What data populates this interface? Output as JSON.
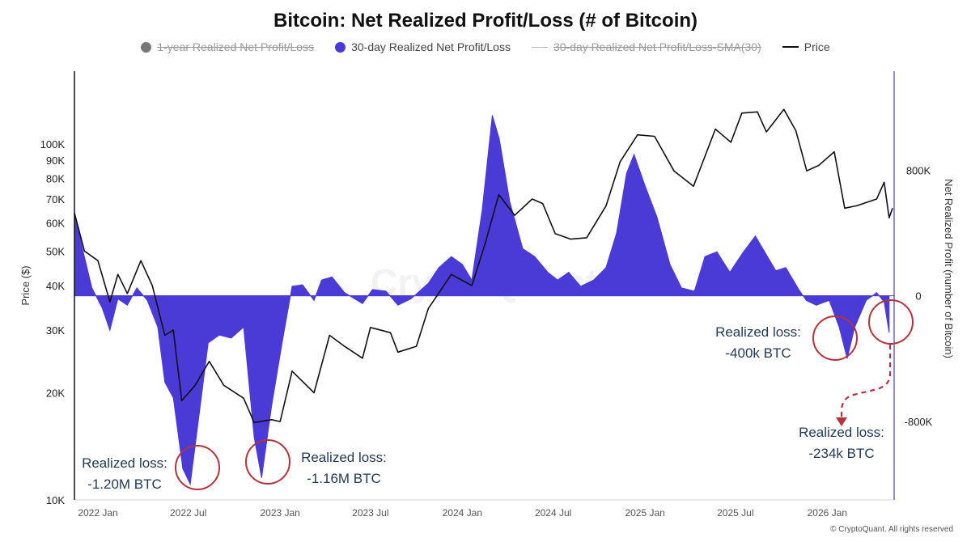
{
  "title": "Bitcoin: Net Realized Profit/Loss (# of Bitcoin)",
  "legend": [
    {
      "label": "1-year Realized Net Profit/Loss",
      "color": "#777777",
      "hidden": true,
      "icon": "dot"
    },
    {
      "label": "30-day Realized Net Profit/Loss",
      "color": "#4a3ad6",
      "hidden": false,
      "icon": "dot"
    },
    {
      "label": "30-day Realized Net Profit/Loss-SMA(30)",
      "color": "#bbbbbb",
      "hidden": true,
      "icon": "line"
    },
    {
      "label": "Price",
      "color": "#111111",
      "hidden": false,
      "icon": "line"
    }
  ],
  "footer": "© CryptoQuant. All rights reserved",
  "watermark": "CryptoQuant",
  "colors": {
    "area": "#4a3ad6",
    "price": "#111111",
    "circle": "#b5333a",
    "annotation_text": "#233a57",
    "right_axis": "#4a3ad6"
  },
  "chart_data": {
    "type": "area",
    "title": "Bitcoin: Net Realized Profit/Loss (# of Bitcoin)",
    "xlabel": "",
    "y_left_label": "Price ($)",
    "y_right_label": "Net Realized Profit (number of Bitcoin)",
    "y_left_scale": "log",
    "y_left_range": [
      10000,
      160000
    ],
    "y_right_range": [
      -1300000,
      1430000
    ],
    "x_range": [
      "2021-11-15",
      "2026-05-15"
    ],
    "x_ticks": [
      {
        "date": "2022-01-01",
        "label": "2022 Jan"
      },
      {
        "date": "2022-07-01",
        "label": "2022 Jul"
      },
      {
        "date": "2023-01-01",
        "label": "2023 Jan"
      },
      {
        "date": "2023-07-01",
        "label": "2023 Jul"
      },
      {
        "date": "2024-01-01",
        "label": "2024 Jan"
      },
      {
        "date": "2024-07-01",
        "label": "2024 Jul"
      },
      {
        "date": "2025-01-01",
        "label": "2025 Jan"
      },
      {
        "date": "2025-07-01",
        "label": "2025 Jul"
      },
      {
        "date": "2026-01-01",
        "label": "2026 Jan"
      }
    ],
    "y_left_ticks": [
      {
        "value": 10000,
        "label": "10K"
      },
      {
        "value": 20000,
        "label": "20K"
      },
      {
        "value": 30000,
        "label": "30K"
      },
      {
        "value": 40000,
        "label": "40K"
      },
      {
        "value": 50000,
        "label": "50K"
      },
      {
        "value": 60000,
        "label": "60K"
      },
      {
        "value": 70000,
        "label": "70K"
      },
      {
        "value": 80000,
        "label": "80K"
      },
      {
        "value": 90000,
        "label": "90K"
      },
      {
        "value": 100000,
        "label": "100K"
      }
    ],
    "y_right_ticks": [
      {
        "value": 800000,
        "label": "800K"
      },
      {
        "value": 0,
        "label": "0"
      },
      {
        "value": -800000,
        "label": "-800K"
      }
    ],
    "grid": false,
    "legend_position": "top-center",
    "series": [
      {
        "name": "30-day Realized Net Profit/Loss",
        "type": "area",
        "axis": "right",
        "points": [
          [
            "2021-11-15",
            530000
          ],
          [
            "2021-12-01",
            300000
          ],
          [
            "2021-12-20",
            50000
          ],
          [
            "2022-01-10",
            -80000
          ],
          [
            "2022-01-25",
            -220000
          ],
          [
            "2022-02-10",
            -20000
          ],
          [
            "2022-03-01",
            -60000
          ],
          [
            "2022-03-20",
            50000
          ],
          [
            "2022-04-10",
            -30000
          ],
          [
            "2022-05-01",
            -200000
          ],
          [
            "2022-05-15",
            -550000
          ],
          [
            "2022-06-01",
            -650000
          ],
          [
            "2022-06-20",
            -1100000
          ],
          [
            "2022-07-05",
            -1200000
          ],
          [
            "2022-07-25",
            -700000
          ],
          [
            "2022-08-10",
            -300000
          ],
          [
            "2022-09-01",
            -250000
          ],
          [
            "2022-09-25",
            -270000
          ],
          [
            "2022-10-20",
            -200000
          ],
          [
            "2022-11-10",
            -900000
          ],
          [
            "2022-11-25",
            -1160000
          ],
          [
            "2022-12-15",
            -700000
          ],
          [
            "2023-01-05",
            -300000
          ],
          [
            "2023-01-25",
            60000
          ],
          [
            "2023-02-15",
            70000
          ],
          [
            "2023-03-10",
            -30000
          ],
          [
            "2023-03-25",
            100000
          ],
          [
            "2023-04-15",
            120000
          ],
          [
            "2023-05-10",
            20000
          ],
          [
            "2023-06-15",
            -50000
          ],
          [
            "2023-07-05",
            40000
          ],
          [
            "2023-08-01",
            30000
          ],
          [
            "2023-08-25",
            -60000
          ],
          [
            "2023-09-20",
            -20000
          ],
          [
            "2023-10-25",
            80000
          ],
          [
            "2023-11-15",
            180000
          ],
          [
            "2023-12-10",
            250000
          ],
          [
            "2024-01-01",
            200000
          ],
          [
            "2024-01-20",
            100000
          ],
          [
            "2024-02-10",
            550000
          ],
          [
            "2024-03-01",
            1150000
          ],
          [
            "2024-03-15",
            1000000
          ],
          [
            "2024-04-05",
            600000
          ],
          [
            "2024-05-01",
            300000
          ],
          [
            "2024-05-25",
            250000
          ],
          [
            "2024-06-20",
            150000
          ],
          [
            "2024-07-10",
            100000
          ],
          [
            "2024-08-01",
            150000
          ],
          [
            "2024-08-25",
            60000
          ],
          [
            "2024-09-20",
            100000
          ],
          [
            "2024-10-15",
            180000
          ],
          [
            "2024-11-05",
            400000
          ],
          [
            "2024-11-25",
            780000
          ],
          [
            "2024-12-10",
            900000
          ],
          [
            "2025-01-01",
            700000
          ],
          [
            "2025-01-25",
            500000
          ],
          [
            "2025-02-20",
            200000
          ],
          [
            "2025-03-15",
            50000
          ],
          [
            "2025-04-10",
            30000
          ],
          [
            "2025-05-01",
            250000
          ],
          [
            "2025-05-25",
            280000
          ],
          [
            "2025-06-20",
            150000
          ],
          [
            "2025-07-15",
            270000
          ],
          [
            "2025-08-10",
            380000
          ],
          [
            "2025-08-25",
            300000
          ],
          [
            "2025-09-20",
            160000
          ],
          [
            "2025-10-10",
            180000
          ],
          [
            "2025-11-05",
            40000
          ],
          [
            "2025-11-20",
            -30000
          ],
          [
            "2025-12-10",
            -60000
          ],
          [
            "2026-01-05",
            -30000
          ],
          [
            "2026-01-25",
            -200000
          ],
          [
            "2026-02-10",
            -400000
          ],
          [
            "2026-02-25",
            -200000
          ],
          [
            "2026-03-20",
            -30000
          ],
          [
            "2026-04-10",
            20000
          ],
          [
            "2026-04-25",
            -40000
          ],
          [
            "2026-05-05",
            -234000
          ]
        ]
      },
      {
        "name": "Price",
        "type": "line",
        "axis": "left",
        "points": [
          [
            "2021-11-15",
            64000
          ],
          [
            "2021-12-05",
            50000
          ],
          [
            "2022-01-01",
            47000
          ],
          [
            "2022-01-25",
            36000
          ],
          [
            "2022-02-10",
            43000
          ],
          [
            "2022-03-01",
            38000
          ],
          [
            "2022-03-28",
            47000
          ],
          [
            "2022-04-20",
            40000
          ],
          [
            "2022-05-15",
            29000
          ],
          [
            "2022-06-01",
            30000
          ],
          [
            "2022-06-18",
            19000
          ],
          [
            "2022-07-15",
            21000
          ],
          [
            "2022-08-12",
            24500
          ],
          [
            "2022-09-10",
            21000
          ],
          [
            "2022-10-20",
            19300
          ],
          [
            "2022-11-10",
            16500
          ],
          [
            "2022-12-15",
            16800
          ],
          [
            "2023-01-01",
            16600
          ],
          [
            "2023-01-25",
            23000
          ],
          [
            "2023-03-10",
            20000
          ],
          [
            "2023-04-10",
            29000
          ],
          [
            "2023-05-10",
            27000
          ],
          [
            "2023-06-15",
            25000
          ],
          [
            "2023-07-01",
            30500
          ],
          [
            "2023-08-10",
            29500
          ],
          [
            "2023-08-25",
            26000
          ],
          [
            "2023-10-01",
            27000
          ],
          [
            "2023-10-25",
            34500
          ],
          [
            "2023-12-10",
            43000
          ],
          [
            "2024-01-20",
            40000
          ],
          [
            "2024-02-15",
            52000
          ],
          [
            "2024-03-14",
            72000
          ],
          [
            "2024-04-15",
            63000
          ],
          [
            "2024-05-20",
            70000
          ],
          [
            "2024-06-10",
            68000
          ],
          [
            "2024-07-05",
            56000
          ],
          [
            "2024-08-05",
            54000
          ],
          [
            "2024-09-06",
            54500
          ],
          [
            "2024-10-15",
            67000
          ],
          [
            "2024-11-12",
            89000
          ],
          [
            "2024-12-17",
            106000
          ],
          [
            "2025-01-20",
            105000
          ],
          [
            "2025-02-28",
            84000
          ],
          [
            "2025-04-08",
            76000
          ],
          [
            "2025-05-22",
            110000
          ],
          [
            "2025-06-22",
            101000
          ],
          [
            "2025-07-14",
            122000
          ],
          [
            "2025-08-14",
            123000
          ],
          [
            "2025-09-01",
            108000
          ],
          [
            "2025-10-06",
            125000
          ],
          [
            "2025-10-30",
            109000
          ],
          [
            "2025-11-21",
            84000
          ],
          [
            "2025-12-15",
            87000
          ],
          [
            "2026-01-15",
            95000
          ],
          [
            "2026-02-05",
            66000
          ],
          [
            "2026-03-01",
            67000
          ],
          [
            "2026-04-10",
            70000
          ],
          [
            "2026-04-25",
            78000
          ],
          [
            "2026-05-05",
            62000
          ],
          [
            "2026-05-12",
            66000
          ]
        ]
      }
    ],
    "annotations": [
      {
        "label": "Realized loss:",
        "value": "-1.20M BTC",
        "date": "2022-07-05",
        "y": -1200000
      },
      {
        "label": "Realized loss:",
        "value": "-1.16M BTC",
        "date": "2022-11-25",
        "y": -1160000
      },
      {
        "label": "Realized loss:",
        "value": "-400k BTC",
        "date": "2026-02-10",
        "y": -400000
      },
      {
        "label": "Realized loss:",
        "value": "-234k BTC",
        "date": "2026-05-05",
        "y": -234000
      }
    ]
  }
}
